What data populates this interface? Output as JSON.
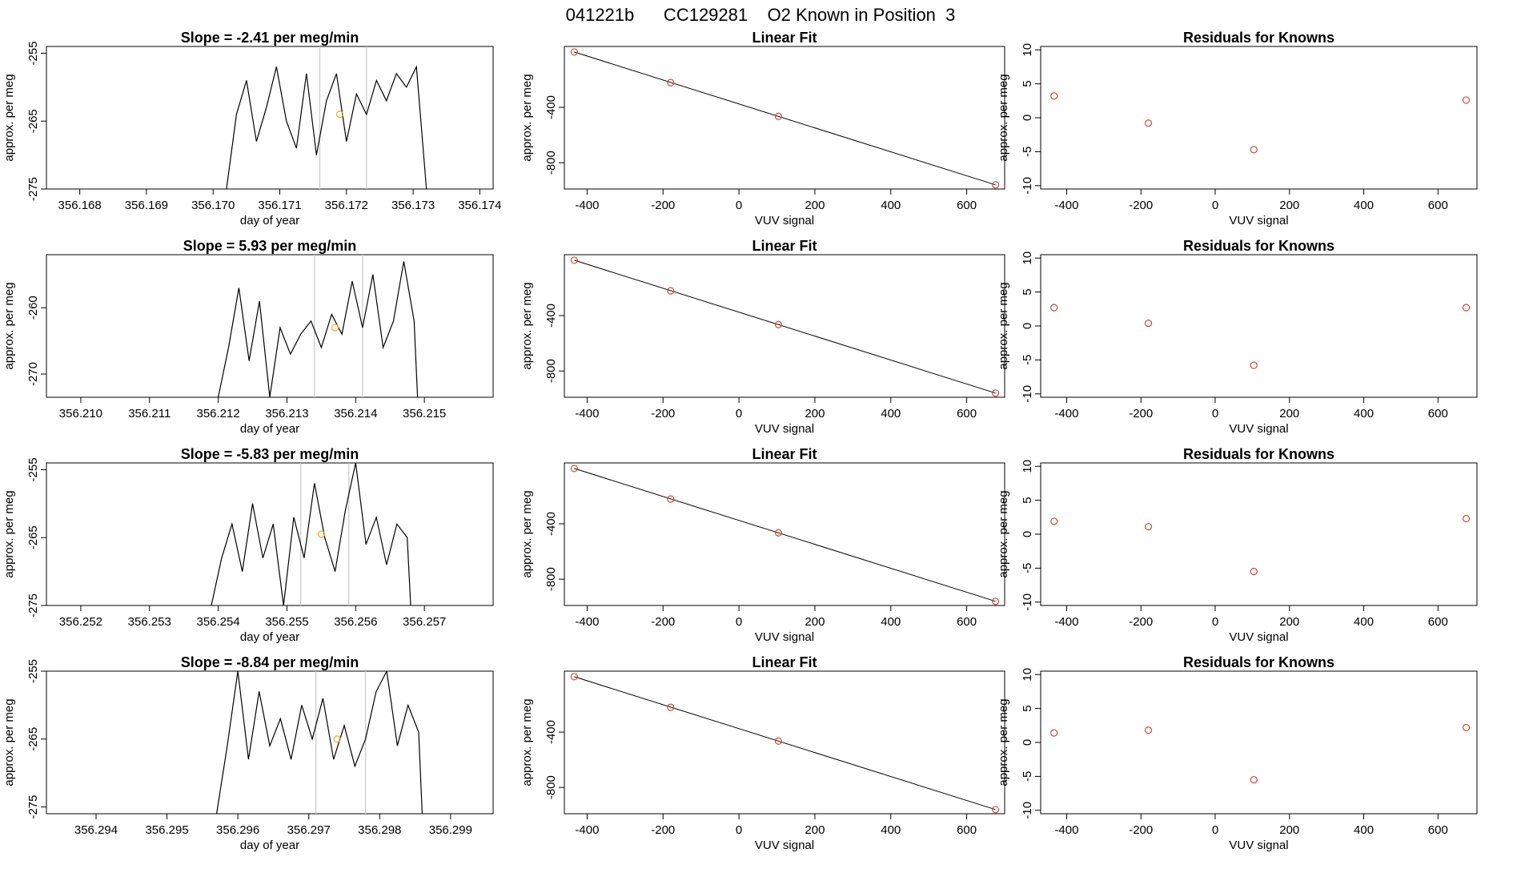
{
  "title": "041221b      CC129281    O2 Known in Position  3",
  "chart_data": [
    {
      "type": "line",
      "title": "Slope =  -2.41  per meg/min",
      "xlabel": "day of year",
      "ylabel": "approx. per meg",
      "xlim": [
        356.1675,
        356.1742
      ],
      "ylim": [
        -275,
        -254
      ],
      "xticks": [
        "356.168",
        "356.169",
        "356.170",
        "356.171",
        "356.172",
        "356.173",
        "356.174"
      ],
      "yticks": [
        "-255",
        "-265",
        "-275"
      ],
      "vlines": [
        356.1716,
        356.1723
      ],
      "marker": {
        "x": 356.1719,
        "y": -264.0
      },
      "x": [
        356.1702,
        356.17035,
        356.1705,
        356.17065,
        356.1708,
        356.17095,
        356.1711,
        356.17125,
        356.1714,
        356.17155,
        356.1717,
        356.17185,
        356.172,
        356.17215,
        356.1723,
        356.17245,
        356.1726,
        356.17275,
        356.1729,
        356.17305,
        356.1732
      ],
      "y": [
        -275,
        -264,
        -259,
        -268,
        -263,
        -257,
        -265,
        -269,
        -258,
        -270,
        -262,
        -258,
        -268,
        -261,
        -264,
        -259,
        -262,
        -258,
        -260,
        -257,
        -275
      ]
    },
    {
      "type": "line",
      "title": "Linear Fit",
      "xlabel": "VUV signal",
      "ylabel": "approx. per meg",
      "xlim": [
        -460,
        700
      ],
      "ylim": [
        -990,
        40
      ],
      "xticks": [
        "-400",
        "-200",
        "0",
        "200",
        "400",
        "600"
      ],
      "yticks": [
        "-400",
        "-800"
      ],
      "fit": {
        "x": [
          -434,
          676
        ],
        "y": [
          0,
          -960
        ]
      },
      "points": [
        {
          "x": -434,
          "y": 0
        },
        {
          "x": -180,
          "y": -221
        },
        {
          "x": 104,
          "y": -465
        },
        {
          "x": 676,
          "y": -960
        }
      ]
    },
    {
      "type": "scatter",
      "title": "Residuals for Knowns",
      "xlabel": "VUV signal",
      "ylabel": "approx. per meg",
      "xlim": [
        -470,
        705
      ],
      "ylim": [
        -10.5,
        10.5
      ],
      "xticks": [
        "-400",
        "-200",
        "0",
        "200",
        "400",
        "600"
      ],
      "yticks": [
        "10",
        "5",
        "0",
        "-5",
        "-10"
      ],
      "points": [
        {
          "x": -434,
          "y": 3.2
        },
        {
          "x": -180,
          "y": -0.8
        },
        {
          "x": 104,
          "y": -4.7
        },
        {
          "x": 676,
          "y": 2.6
        }
      ]
    },
    {
      "type": "line",
      "title": "Slope =  5.93  per meg/min",
      "xlabel": "day of year",
      "ylabel": "approx. per meg",
      "xlim": [
        356.2095,
        356.216
      ],
      "ylim": [
        -273.5,
        -252
      ],
      "xticks": [
        "356.210",
        "356.211",
        "356.212",
        "356.213",
        "356.214",
        "356.215"
      ],
      "yticks": [
        "-260",
        "-270"
      ],
      "vlines": [
        356.2134,
        356.2141
      ],
      "marker": {
        "x": 356.2137,
        "y": -263.0
      },
      "x": [
        356.212,
        356.21215,
        356.2123,
        356.21245,
        356.2126,
        356.21275,
        356.2129,
        356.21305,
        356.2132,
        356.21335,
        356.2135,
        356.21365,
        356.2138,
        356.21395,
        356.2141,
        356.21425,
        356.2144,
        356.21455,
        356.2147,
        356.21485,
        356.2149
      ],
      "y": [
        -273.5,
        -266,
        -257,
        -268,
        -259,
        -273.5,
        -263,
        -267,
        -264,
        -262,
        -266,
        -261,
        -264,
        -256,
        -263,
        -255,
        -266,
        -262,
        -253,
        -262,
        -273.5
      ]
    },
    {
      "type": "line",
      "title": "Linear Fit",
      "xlabel": "VUV signal",
      "ylabel": "approx. per meg",
      "xlim": [
        -460,
        700
      ],
      "ylim": [
        -990,
        40
      ],
      "xticks": [
        "-400",
        "-200",
        "0",
        "200",
        "400",
        "600"
      ],
      "yticks": [
        "-400",
        "-800"
      ],
      "fit": {
        "x": [
          -434,
          676
        ],
        "y": [
          0,
          -960
        ]
      },
      "points": [
        {
          "x": -434,
          "y": 0
        },
        {
          "x": -180,
          "y": -221
        },
        {
          "x": 104,
          "y": -465
        },
        {
          "x": 676,
          "y": -960
        }
      ]
    },
    {
      "type": "scatter",
      "title": "Residuals for Knowns",
      "xlabel": "VUV signal",
      "ylabel": "approx. per meg",
      "xlim": [
        -470,
        705
      ],
      "ylim": [
        -10.5,
        10.5
      ],
      "xticks": [
        "-400",
        "-200",
        "0",
        "200",
        "400",
        "600"
      ],
      "yticks": [
        "10",
        "5",
        "0",
        "-5",
        "-10"
      ],
      "points": [
        {
          "x": -434,
          "y": 2.7
        },
        {
          "x": -180,
          "y": 0.4
        },
        {
          "x": 104,
          "y": -5.8
        },
        {
          "x": 676,
          "y": 2.7
        }
      ]
    },
    {
      "type": "line",
      "title": "Slope =  -5.83  per meg/min",
      "xlabel": "day of year",
      "ylabel": "approx. per meg",
      "xlim": [
        356.2515,
        356.258
      ],
      "ylim": [
        -275,
        -254
      ],
      "xticks": [
        "356.252",
        "356.253",
        "356.254",
        "356.255",
        "356.256",
        "356.257"
      ],
      "yticks": [
        "-255",
        "-265",
        "-275"
      ],
      "vlines": [
        356.2552,
        356.2559
      ],
      "marker": {
        "x": 356.2555,
        "y": -264.5
      },
      "x": [
        356.2539,
        356.25405,
        356.2542,
        356.25435,
        356.2545,
        356.25465,
        356.2548,
        356.25495,
        356.2551,
        356.25525,
        356.2554,
        356.25555,
        356.2557,
        356.25585,
        356.256,
        356.25615,
        356.2563,
        356.25645,
        356.2566,
        356.25675,
        356.2568
      ],
      "y": [
        -275,
        -268,
        -263,
        -270,
        -260,
        -268,
        -263,
        -275,
        -262,
        -268,
        -257,
        -265,
        -270,
        -261,
        -254,
        -266,
        -262,
        -269,
        -263,
        -265,
        -275
      ]
    },
    {
      "type": "line",
      "title": "Linear Fit",
      "xlabel": "VUV signal",
      "ylabel": "approx. per meg",
      "xlim": [
        -460,
        700
      ],
      "ylim": [
        -990,
        40
      ],
      "xticks": [
        "-400",
        "-200",
        "0",
        "200",
        "400",
        "600"
      ],
      "yticks": [
        "-400",
        "-800"
      ],
      "fit": {
        "x": [
          -434,
          676
        ],
        "y": [
          0,
          -960
        ]
      },
      "points": [
        {
          "x": -434,
          "y": 0
        },
        {
          "x": -180,
          "y": -221
        },
        {
          "x": 104,
          "y": -465
        },
        {
          "x": 676,
          "y": -960
        }
      ]
    },
    {
      "type": "scatter",
      "title": "Residuals for Knowns",
      "xlabel": "VUV signal",
      "ylabel": "approx. per meg",
      "xlim": [
        -470,
        705
      ],
      "ylim": [
        -10.5,
        10.5
      ],
      "xticks": [
        "-400",
        "-200",
        "0",
        "200",
        "400",
        "600"
      ],
      "yticks": [
        "10",
        "5",
        "0",
        "-5",
        "-10"
      ],
      "points": [
        {
          "x": -434,
          "y": 1.9
        },
        {
          "x": -180,
          "y": 1.1
        },
        {
          "x": 104,
          "y": -5.5
        },
        {
          "x": 676,
          "y": 2.3
        }
      ]
    },
    {
      "type": "line",
      "title": "Slope =  -8.84  per meg/min",
      "xlabel": "day of year",
      "ylabel": "approx. per meg",
      "xlim": [
        356.2933,
        356.2996
      ],
      "ylim": [
        -276,
        -255
      ],
      "xticks": [
        "356.294",
        "356.295",
        "356.296",
        "356.297",
        "356.298",
        "356.299"
      ],
      "yticks": [
        "-255",
        "-265",
        "-275"
      ],
      "vlines": [
        356.2971,
        356.2978
      ],
      "marker": {
        "x": 356.2974,
        "y": -265.0
      },
      "x": [
        356.2957,
        356.29585,
        356.296,
        356.29615,
        356.2963,
        356.29645,
        356.2966,
        356.29675,
        356.2969,
        356.29705,
        356.2972,
        356.29735,
        356.2975,
        356.29765,
        356.2978,
        356.29795,
        356.2981,
        356.29825,
        356.2984,
        356.29855,
        356.2986
      ],
      "y": [
        -276,
        -266,
        -255,
        -268,
        -258,
        -266,
        -262,
        -268,
        -260,
        -265,
        -259,
        -268,
        -263,
        -269,
        -265,
        -258,
        -255,
        -266,
        -260,
        -264,
        -276
      ]
    },
    {
      "type": "line",
      "title": "Linear Fit",
      "xlabel": "VUV signal",
      "ylabel": "approx. per meg",
      "xlim": [
        -460,
        700
      ],
      "ylim": [
        -990,
        40
      ],
      "xticks": [
        "-400",
        "-200",
        "0",
        "200",
        "400",
        "600"
      ],
      "yticks": [
        "-400",
        "-800"
      ],
      "fit": {
        "x": [
          -434,
          676
        ],
        "y": [
          0,
          -960
        ]
      },
      "points": [
        {
          "x": -434,
          "y": 0
        },
        {
          "x": -180,
          "y": -221
        },
        {
          "x": 104,
          "y": -465
        },
        {
          "x": 676,
          "y": -960
        }
      ]
    },
    {
      "type": "scatter",
      "title": "Residuals for Knowns",
      "xlabel": "VUV signal",
      "ylabel": "approx. per meg",
      "xlim": [
        -470,
        705
      ],
      "ylim": [
        -10.5,
        10.5
      ],
      "xticks": [
        "-400",
        "-200",
        "0",
        "200",
        "400",
        "600"
      ],
      "yticks": [
        "10",
        "5",
        "0",
        "-5",
        "-10"
      ],
      "points": [
        {
          "x": -434,
          "y": 1.4
        },
        {
          "x": -180,
          "y": 1.8
        },
        {
          "x": 104,
          "y": -5.5
        },
        {
          "x": 676,
          "y": 2.2
        }
      ]
    }
  ]
}
